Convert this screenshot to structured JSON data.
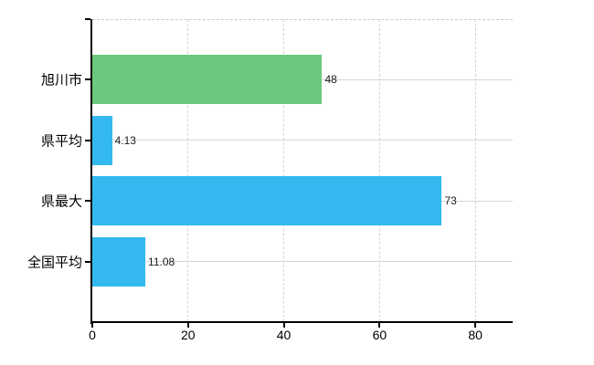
{
  "chart_data": {
    "type": "bar",
    "orientation": "horizontal",
    "title": "",
    "xlabel": "",
    "ylabel": "",
    "categories": [
      "旭川市",
      "県平均",
      "県最大",
      "全国平均"
    ],
    "values": [
      48,
      4.13,
      73,
      11.08
    ],
    "value_labels": [
      "48",
      "4.13",
      "73",
      "11.08"
    ],
    "bar_colors": [
      "#6cc87e",
      "#33b9f0",
      "#33b9f0",
      "#33b9f0"
    ],
    "x_ticks": [
      0,
      20,
      40,
      60,
      80
    ],
    "x_tick_labels": [
      "0",
      "20",
      "40",
      "60",
      "80"
    ],
    "xlim": [
      0,
      87.7
    ],
    "grid": "on",
    "legend": "none",
    "colors": {
      "bar_green": "#6cc87e",
      "bar_blue": "#33b9f0",
      "grid": "#d6d6d6",
      "grid_dashed": "#c9c9c9",
      "axis": "#000000",
      "text": "#000000",
      "background": "#ffffff"
    }
  }
}
